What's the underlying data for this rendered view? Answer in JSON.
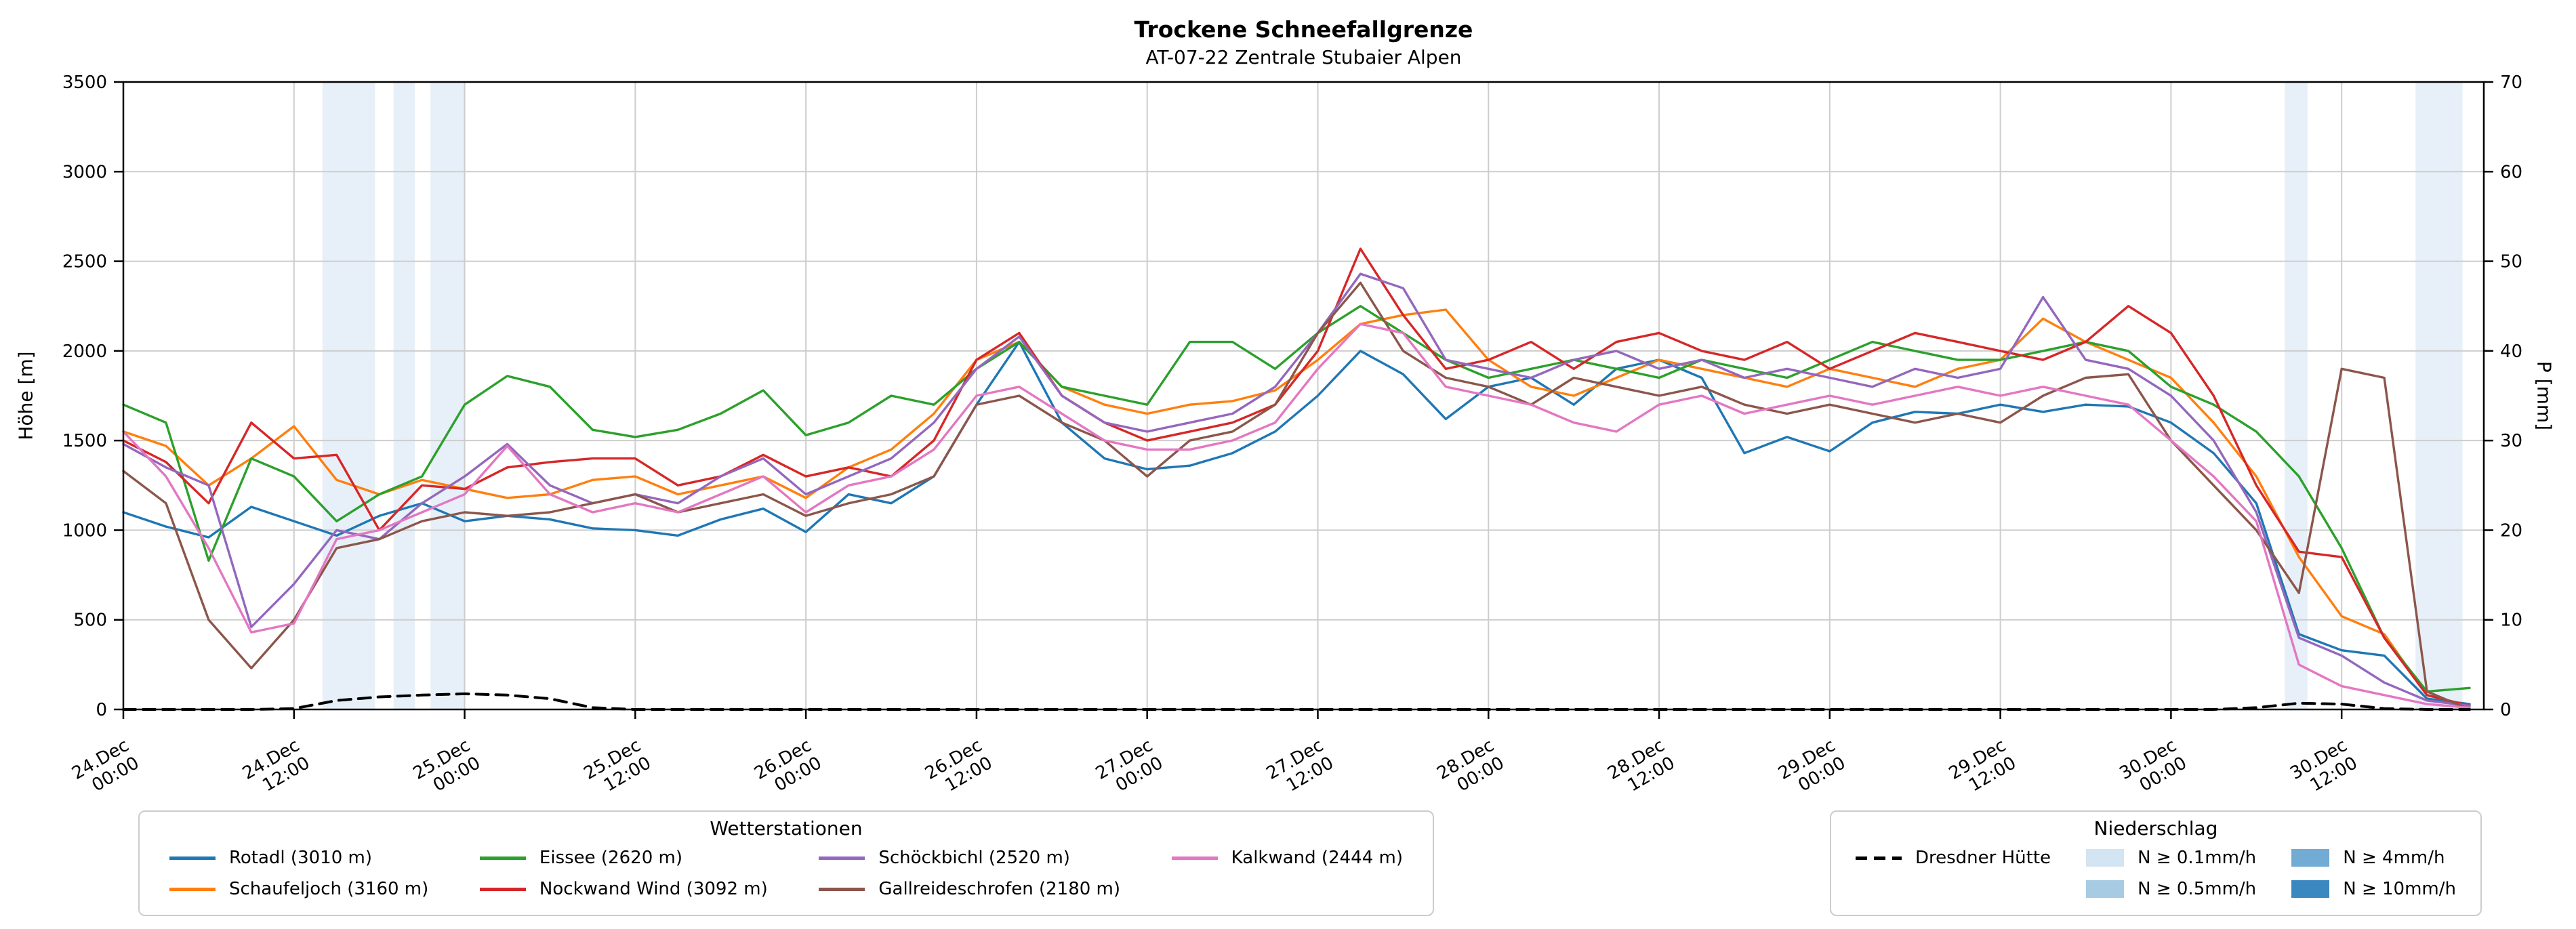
{
  "chart_data": {
    "type": "line",
    "title": "Trockene Schneefallgrenze",
    "subtitle": "AT-07-22 Zentrale Stubaier Alpen",
    "y_left_label": "Höhe [m]",
    "y_right_label": "P [mm]",
    "x_unit": "hours since 24.Dec 00:00",
    "x_range": [
      0,
      166
    ],
    "y_left_range": [
      0,
      3500
    ],
    "y_right_range": [
      0,
      70
    ],
    "y_left_ticks": [
      0,
      500,
      1000,
      1500,
      2000,
      2500,
      3000,
      3500
    ],
    "y_right_ticks": [
      0,
      10,
      20,
      30,
      40,
      50,
      60,
      70
    ],
    "x_ticks": [
      {
        "t": 0,
        "date": "24.Dec",
        "time": "00:00"
      },
      {
        "t": 12,
        "date": "24.Dec",
        "time": "12:00"
      },
      {
        "t": 24,
        "date": "25.Dec",
        "time": "00:00"
      },
      {
        "t": 36,
        "date": "25.Dec",
        "time": "12:00"
      },
      {
        "t": 48,
        "date": "26.Dec",
        "time": "00:00"
      },
      {
        "t": 60,
        "date": "26.Dec",
        "time": "12:00"
      },
      {
        "t": 72,
        "date": "27.Dec",
        "time": "00:00"
      },
      {
        "t": 84,
        "date": "27.Dec",
        "time": "12:00"
      },
      {
        "t": 96,
        "date": "28.Dec",
        "time": "00:00"
      },
      {
        "t": 108,
        "date": "28.Dec",
        "time": "12:00"
      },
      {
        "t": 120,
        "date": "29.Dec",
        "time": "00:00"
      },
      {
        "t": 132,
        "date": "29.Dec",
        "time": "12:00"
      },
      {
        "t": 144,
        "date": "30.Dec",
        "time": "00:00"
      },
      {
        "t": 156,
        "date": "30.Dec",
        "time": "12:00"
      }
    ],
    "grid": true,
    "x": [
      0,
      3,
      6,
      9,
      12,
      15,
      18,
      21,
      24,
      27,
      30,
      33,
      36,
      39,
      42,
      45,
      48,
      51,
      54,
      57,
      60,
      63,
      66,
      69,
      72,
      75,
      78,
      81,
      84,
      87,
      90,
      93,
      96,
      99,
      102,
      105,
      108,
      111,
      114,
      117,
      120,
      123,
      126,
      129,
      132,
      135,
      138,
      141,
      144,
      147,
      150,
      153,
      156,
      159,
      162,
      165
    ],
    "series": [
      {
        "name": "Rotadl (3010 m)",
        "color": "#1f77b4",
        "axis": "left",
        "values": [
          1100,
          1020,
          960,
          1130,
          1050,
          970,
          1080,
          1150,
          1050,
          1080,
          1060,
          1010,
          1000,
          970,
          1060,
          1120,
          990,
          1200,
          1150,
          1300,
          1700,
          2050,
          1600,
          1400,
          1340,
          1360,
          1430,
          1550,
          1750,
          2000,
          1870,
          1620,
          1800,
          1850,
          1700,
          1900,
          1950,
          1850,
          1430,
          1520,
          1440,
          1600,
          1660,
          1650,
          1700,
          1660,
          1700,
          1690,
          1600,
          1430,
          1150,
          420,
          330,
          300,
          60,
          30
        ]
      },
      {
        "name": "Schaufeljoch (3160 m)",
        "color": "#ff7f0e",
        "axis": "left",
        "values": [
          1550,
          1470,
          1250,
          1400,
          1580,
          1280,
          1200,
          1280,
          1230,
          1180,
          1200,
          1280,
          1300,
          1200,
          1250,
          1300,
          1180,
          1350,
          1450,
          1650,
          1950,
          2050,
          1800,
          1700,
          1650,
          1700,
          1720,
          1780,
          1950,
          2150,
          2200,
          2230,
          1950,
          1800,
          1750,
          1850,
          1950,
          1900,
          1850,
          1800,
          1900,
          1850,
          1800,
          1900,
          1950,
          2180,
          2050,
          1950,
          1850,
          1600,
          1300,
          850,
          520,
          420,
          80,
          20
        ]
      },
      {
        "name": "Eissee (2620 m)",
        "color": "#2ca02c",
        "axis": "left",
        "values": [
          1700,
          1600,
          830,
          1400,
          1300,
          1050,
          1200,
          1300,
          1700,
          1860,
          1800,
          1560,
          1520,
          1560,
          1650,
          1780,
          1530,
          1600,
          1750,
          1700,
          1900,
          2050,
          1800,
          1750,
          1700,
          2050,
          2050,
          1900,
          2100,
          2250,
          2100,
          1950,
          1850,
          1900,
          1950,
          1900,
          1850,
          1950,
          1900,
          1850,
          1950,
          2050,
          2000,
          1950,
          1950,
          2000,
          2050,
          2000,
          1800,
          1700,
          1550,
          1300,
          900,
          400,
          100,
          120
        ]
      },
      {
        "name": "Nockwand Wind (3092 m)",
        "color": "#d62728",
        "axis": "left",
        "values": [
          1500,
          1380,
          1150,
          1600,
          1400,
          1420,
          1000,
          1250,
          1230,
          1350,
          1380,
          1400,
          1400,
          1250,
          1300,
          1420,
          1300,
          1350,
          1300,
          1500,
          1950,
          2100,
          1750,
          1600,
          1500,
          1550,
          1600,
          1700,
          2000,
          2570,
          2200,
          1900,
          1950,
          2050,
          1900,
          2050,
          2100,
          2000,
          1950,
          2050,
          1900,
          2000,
          2100,
          2050,
          2000,
          1950,
          2050,
          2250,
          2100,
          1750,
          1250,
          880,
          850,
          400,
          80,
          20
        ]
      },
      {
        "name": "Schöckbichl (2520 m)",
        "color": "#9467bd",
        "axis": "left",
        "values": [
          1480,
          1350,
          1250,
          460,
          700,
          1000,
          950,
          1150,
          1300,
          1480,
          1250,
          1150,
          1200,
          1150,
          1300,
          1400,
          1200,
          1300,
          1400,
          1600,
          1900,
          2080,
          1750,
          1600,
          1550,
          1600,
          1650,
          1800,
          2100,
          2430,
          2350,
          1950,
          1900,
          1850,
          1950,
          2000,
          1900,
          1950,
          1850,
          1900,
          1850,
          1800,
          1900,
          1850,
          1900,
          2300,
          1950,
          1900,
          1750,
          1500,
          1100,
          400,
          300,
          150,
          50,
          20
        ]
      },
      {
        "name": "Gallreideschrofen (2180 m)",
        "color": "#8c564b",
        "axis": "left",
        "values": [
          1330,
          1150,
          500,
          230,
          500,
          900,
          950,
          1050,
          1100,
          1080,
          1100,
          1150,
          1200,
          1100,
          1150,
          1200,
          1080,
          1150,
          1200,
          1300,
          1700,
          1750,
          1600,
          1500,
          1300,
          1500,
          1550,
          1700,
          2100,
          2380,
          2000,
          1850,
          1800,
          1700,
          1850,
          1800,
          1750,
          1800,
          1700,
          1650,
          1700,
          1650,
          1600,
          1650,
          1600,
          1750,
          1850,
          1870,
          1500,
          1250,
          1000,
          650,
          1900,
          1850,
          100,
          0
        ]
      },
      {
        "name": "Kalkwand (2444 m)",
        "color": "#e377c2",
        "axis": "left",
        "values": [
          1550,
          1300,
          900,
          430,
          480,
          950,
          1000,
          1100,
          1200,
          1470,
          1200,
          1100,
          1150,
          1100,
          1200,
          1300,
          1100,
          1250,
          1300,
          1450,
          1750,
          1800,
          1650,
          1500,
          1450,
          1450,
          1500,
          1600,
          1900,
          2150,
          2100,
          1800,
          1750,
          1700,
          1600,
          1550,
          1700,
          1750,
          1650,
          1700,
          1750,
          1700,
          1750,
          1800,
          1750,
          1800,
          1750,
          1700,
          1500,
          1300,
          1050,
          250,
          130,
          80,
          30,
          10
        ]
      },
      {
        "name": "Dresdner Hütte",
        "color": "#000000",
        "axis": "right",
        "dash": true,
        "values": [
          0,
          0,
          0,
          0,
          0.1,
          1,
          1.4,
          1.6,
          1.75,
          1.6,
          1.2,
          0.2,
          0,
          0,
          0,
          0,
          0,
          0,
          0,
          0,
          0,
          0,
          0,
          0,
          0,
          0,
          0,
          0,
          0,
          0,
          0,
          0,
          0,
          0,
          0,
          0,
          0,
          0,
          0,
          0,
          0,
          0,
          0,
          0,
          0,
          0,
          0,
          0,
          0,
          0,
          0.2,
          0.7,
          0.6,
          0.1,
          0,
          0
        ]
      }
    ],
    "precip_bands": [
      {
        "t_from": 14.0,
        "t_to": 17.7,
        "level": "N ≥ 0.1mm/h",
        "level_index": 0
      },
      {
        "t_from": 19.0,
        "t_to": 20.5,
        "level": "N ≥ 0.1mm/h",
        "level_index": 0
      },
      {
        "t_from": 21.6,
        "t_to": 24.0,
        "level": "N ≥ 0.1mm/h",
        "level_index": 0
      },
      {
        "t_from": 152.0,
        "t_to": 153.6,
        "level": "N ≥ 0.1mm/h",
        "level_index": 0
      },
      {
        "t_from": 161.2,
        "t_to": 164.5,
        "level": "N ≥ 0.1mm/h",
        "level_index": 0
      }
    ]
  },
  "legends": {
    "stations_title": "Wetterstationen",
    "stations": [
      {
        "name": "Rotadl (3010 m)",
        "color": "#1f77b4"
      },
      {
        "name": "Schaufeljoch (3160 m)",
        "color": "#ff7f0e"
      },
      {
        "name": "Eissee (2620 m)",
        "color": "#2ca02c"
      },
      {
        "name": "Nockwand Wind (3092 m)",
        "color": "#d62728"
      },
      {
        "name": "Schöckbichl (2520 m)",
        "color": "#9467bd"
      },
      {
        "name": "Gallreideschrofen (2180 m)",
        "color": "#8c564b"
      },
      {
        "name": "Kalkwand (2444 m)",
        "color": "#e377c2"
      }
    ],
    "precip_title": "Niederschlag",
    "precip_line": {
      "label": "Dresdner Hütte",
      "color": "#000000"
    },
    "precip_levels": [
      {
        "label": "N ≥ 0.1mm/h",
        "color": "#d3e4f3"
      },
      {
        "label": "N ≥ 0.5mm/h",
        "color": "#a6cbe3"
      },
      {
        "label": "N ≥ 4mm/h",
        "color": "#72abd4"
      },
      {
        "label": "N ≥ 10mm/h",
        "color": "#3b87c0"
      }
    ]
  }
}
